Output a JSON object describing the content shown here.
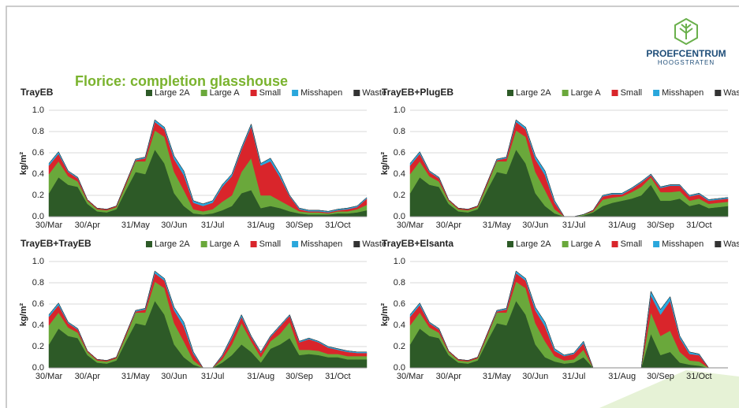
{
  "slide": {
    "title": "Florice: completion glasshouse",
    "logo_name": "PROEFCENTRUM",
    "logo_place": "HOOGSTRATEN"
  },
  "chart_data": [
    {
      "type": "stacked_area",
      "title": "TrayEB",
      "ylabel": "kg/m²",
      "categories": [
        "30/Mar",
        null,
        null,
        null,
        "30/Apr",
        null,
        null,
        null,
        null,
        "31/May",
        null,
        null,
        null,
        "30/Jun",
        null,
        null,
        null,
        "31/Jul",
        null,
        null,
        null,
        null,
        "31/Aug",
        null,
        null,
        null,
        "30/Sep",
        null,
        null,
        null,
        "31/Oct",
        null,
        null,
        null
      ],
      "ylim": [
        0,
        1
      ],
      "yticks": [
        {
          "value": 0,
          "label": "0.0"
        },
        0.2,
        0.4,
        0.6,
        0.8,
        {
          "value": 1,
          "label": "1.0"
        }
      ],
      "grid": true,
      "series": [
        {
          "name": "Large 2A",
          "color": "#2d5a27",
          "values": [
            0.22,
            0.37,
            0.3,
            0.28,
            0.12,
            0.05,
            0.04,
            0.07,
            0.25,
            0.42,
            0.4,
            0.63,
            0.5,
            0.22,
            0.1,
            0.03,
            0.02,
            0.03,
            0.06,
            0.1,
            0.22,
            0.25,
            0.08,
            0.1,
            0.08,
            0.05,
            0.03,
            0.02,
            0.02,
            0.02,
            0.03,
            0.03,
            0.04,
            0.06
          ]
        },
        {
          "name": "Large A",
          "color": "#6aa83b",
          "values": [
            0.18,
            0.15,
            0.08,
            0.05,
            0.03,
            0.02,
            0.02,
            0.02,
            0.05,
            0.1,
            0.12,
            0.18,
            0.25,
            0.2,
            0.15,
            0.04,
            0.03,
            0.04,
            0.08,
            0.1,
            0.2,
            0.3,
            0.12,
            0.1,
            0.07,
            0.05,
            0.02,
            0.02,
            0.02,
            0.01,
            0.02,
            0.02,
            0.03,
            0.05
          ]
        },
        {
          "name": "Small",
          "color": "#d9252b",
          "values": [
            0.08,
            0.07,
            0.04,
            0.03,
            0.01,
            0.01,
            0.01,
            0.01,
            0.02,
            0.01,
            0.03,
            0.08,
            0.07,
            0.12,
            0.14,
            0.06,
            0.05,
            0.06,
            0.14,
            0.18,
            0.21,
            0.3,
            0.28,
            0.32,
            0.22,
            0.09,
            0.02,
            0.01,
            0.01,
            0.01,
            0.01,
            0.02,
            0.02,
            0.06
          ]
        },
        {
          "name": "Misshapen",
          "color": "#2aa7dc",
          "values": [
            0.02,
            0.02,
            0.01,
            0.01,
            0,
            0,
            0,
            0,
            0,
            0.01,
            0.01,
            0.02,
            0.02,
            0.03,
            0.04,
            0.02,
            0.02,
            0.02,
            0.02,
            0.02,
            0.02,
            0.02,
            0.02,
            0.03,
            0.03,
            0.01,
            0.01,
            0.01,
            0.01,
            0.01,
            0.01,
            0.01,
            0.01,
            0.01
          ]
        },
        {
          "name": "Waste",
          "color": "#333333",
          "values": [
            0,
            0,
            0,
            0,
            0,
            0,
            0,
            0,
            0,
            0,
            0,
            0,
            0,
            0,
            0,
            0,
            0,
            0,
            0,
            0,
            0,
            0,
            0,
            0,
            0,
            0,
            0,
            0,
            0,
            0,
            0,
            0,
            0,
            0
          ]
        }
      ]
    },
    {
      "type": "stacked_area",
      "title": "TrayEB+PlugEB",
      "ylabel": "kg/m²",
      "categories": [
        "30/Mar",
        null,
        null,
        null,
        "30/Apr",
        null,
        null,
        null,
        null,
        "31/May",
        null,
        null,
        null,
        "30/Jun",
        null,
        null,
        null,
        "31/Jul",
        null,
        null,
        null,
        null,
        "31/Aug",
        null,
        null,
        null,
        "30/Sep",
        null,
        null,
        null,
        "31/Oct",
        null,
        null,
        null
      ],
      "ylim": [
        0,
        1
      ],
      "yticks": [
        {
          "value": 0,
          "label": "0.0"
        },
        0.2,
        0.4,
        0.6,
        0.8,
        {
          "value": 1,
          "label": "1.0"
        }
      ],
      "grid": true,
      "series": [
        {
          "name": "Large 2A",
          "color": "#2d5a27",
          "values": [
            0.22,
            0.37,
            0.3,
            0.28,
            0.12,
            0.05,
            0.04,
            0.07,
            0.25,
            0.42,
            0.4,
            0.63,
            0.5,
            0.22,
            0.1,
            0.03,
            0,
            0,
            0.01,
            0.04,
            0.1,
            0.13,
            0.15,
            0.17,
            0.2,
            0.3,
            0.15,
            0.15,
            0.17,
            0.1,
            0.12,
            0.08,
            0.09,
            0.1
          ]
        },
        {
          "name": "Large A",
          "color": "#6aa83b",
          "values": [
            0.18,
            0.15,
            0.08,
            0.05,
            0.03,
            0.02,
            0.02,
            0.02,
            0.05,
            0.1,
            0.12,
            0.18,
            0.25,
            0.2,
            0.15,
            0.04,
            0,
            0,
            0.01,
            0.01,
            0.06,
            0.05,
            0.04,
            0.06,
            0.08,
            0.07,
            0.08,
            0.08,
            0.07,
            0.05,
            0.05,
            0.04,
            0.04,
            0.04
          ]
        },
        {
          "name": "Small",
          "color": "#d9252b",
          "values": [
            0.08,
            0.07,
            0.04,
            0.03,
            0.01,
            0.01,
            0.01,
            0.01,
            0.02,
            0.01,
            0.03,
            0.08,
            0.07,
            0.12,
            0.14,
            0.06,
            0,
            0,
            0,
            0.01,
            0.03,
            0.03,
            0.02,
            0.03,
            0.04,
            0.02,
            0.04,
            0.06,
            0.05,
            0.04,
            0.04,
            0.03,
            0.03,
            0.03
          ]
        },
        {
          "name": "Misshapen",
          "color": "#2aa7dc",
          "values": [
            0.02,
            0.02,
            0.01,
            0.01,
            0,
            0,
            0,
            0,
            0,
            0.01,
            0.01,
            0.02,
            0.02,
            0.03,
            0.04,
            0.02,
            0,
            0,
            0,
            0,
            0.01,
            0.01,
            0.01,
            0.01,
            0.01,
            0.01,
            0.01,
            0.01,
            0.01,
            0.01,
            0.01,
            0.01,
            0.01,
            0.01
          ]
        },
        {
          "name": "Waste",
          "color": "#333333",
          "values": [
            0,
            0,
            0,
            0,
            0,
            0,
            0,
            0,
            0,
            0,
            0,
            0,
            0,
            0,
            0,
            0,
            0,
            0,
            0,
            0,
            0,
            0,
            0,
            0,
            0,
            0,
            0,
            0,
            0,
            0,
            0,
            0,
            0,
            0
          ]
        }
      ]
    },
    {
      "type": "stacked_area",
      "title": "TrayEB+TrayEB",
      "ylabel": "kg/m²",
      "categories": [
        "30/Mar",
        null,
        null,
        null,
        "30/Apr",
        null,
        null,
        null,
        null,
        "31/May",
        null,
        null,
        null,
        "30/Jun",
        null,
        null,
        null,
        "31/Jul",
        null,
        null,
        null,
        null,
        "31/Aug",
        null,
        null,
        null,
        "30/Sep",
        null,
        null,
        null,
        "31/Oct",
        null,
        null,
        null
      ],
      "ylim": [
        0,
        1
      ],
      "yticks": [
        {
          "value": 0,
          "label": "0.0"
        },
        0.2,
        0.4,
        0.6,
        0.8,
        {
          "value": 1,
          "label": "1.0"
        }
      ],
      "grid": true,
      "series": [
        {
          "name": "Large 2A",
          "color": "#2d5a27",
          "values": [
            0.22,
            0.37,
            0.3,
            0.28,
            0.12,
            0.05,
            0.04,
            0.07,
            0.25,
            0.42,
            0.4,
            0.63,
            0.5,
            0.22,
            0.1,
            0.03,
            0,
            0,
            0.05,
            0.12,
            0.22,
            0.15,
            0.05,
            0.18,
            0.22,
            0.28,
            0.12,
            0.13,
            0.12,
            0.1,
            0.1,
            0.08,
            0.08,
            0.08
          ]
        },
        {
          "name": "Large A",
          "color": "#6aa83b",
          "values": [
            0.18,
            0.15,
            0.08,
            0.05,
            0.03,
            0.02,
            0.02,
            0.02,
            0.05,
            0.1,
            0.12,
            0.18,
            0.25,
            0.2,
            0.15,
            0.04,
            0,
            0,
            0.03,
            0.1,
            0.2,
            0.1,
            0.05,
            0.07,
            0.1,
            0.15,
            0.05,
            0.04,
            0.04,
            0.03,
            0.03,
            0.03,
            0.03,
            0.03
          ]
        },
        {
          "name": "Small",
          "color": "#d9252b",
          "values": [
            0.08,
            0.07,
            0.04,
            0.03,
            0.01,
            0.01,
            0.01,
            0.01,
            0.02,
            0.01,
            0.03,
            0.08,
            0.07,
            0.12,
            0.14,
            0.06,
            0,
            0,
            0.03,
            0.06,
            0.06,
            0.04,
            0.04,
            0.04,
            0.07,
            0.06,
            0.07,
            0.1,
            0.08,
            0.06,
            0.04,
            0.04,
            0.03,
            0.03
          ]
        },
        {
          "name": "Misshapen",
          "color": "#2aa7dc",
          "values": [
            0.02,
            0.02,
            0.01,
            0.01,
            0,
            0,
            0,
            0,
            0,
            0.01,
            0.01,
            0.02,
            0.02,
            0.03,
            0.04,
            0.02,
            0,
            0,
            0.01,
            0.02,
            0.02,
            0.01,
            0.01,
            0.01,
            0.01,
            0.01,
            0.01,
            0.01,
            0.01,
            0.01,
            0.01,
            0.01,
            0.01,
            0.01
          ]
        },
        {
          "name": "Waste",
          "color": "#333333",
          "values": [
            0,
            0,
            0,
            0,
            0,
            0,
            0,
            0,
            0,
            0,
            0,
            0,
            0,
            0,
            0,
            0,
            0,
            0,
            0,
            0,
            0,
            0,
            0,
            0,
            0,
            0,
            0,
            0,
            0,
            0,
            0,
            0,
            0,
            0
          ]
        }
      ]
    },
    {
      "type": "stacked_area",
      "title": "TrayEB+Elsanta",
      "ylabel": "kg/m²",
      "categories": [
        "30/Mar",
        null,
        null,
        null,
        "30/Apr",
        null,
        null,
        null,
        null,
        "31/May",
        null,
        null,
        null,
        "30/Jun",
        null,
        null,
        null,
        "31/Jul",
        null,
        null,
        null,
        null,
        "31/Aug",
        null,
        null,
        null,
        "30/Sep",
        null,
        null,
        null,
        "31/Oct",
        null,
        null,
        null
      ],
      "ylim": [
        0,
        1
      ],
      "yticks": [
        {
          "value": 0,
          "label": "0.0"
        },
        0.2,
        0.4,
        0.6,
        0.8,
        {
          "value": 1,
          "label": "1.0"
        }
      ],
      "grid": true,
      "series": [
        {
          "name": "Large 2A",
          "color": "#2d5a27",
          "values": [
            0.22,
            0.37,
            0.3,
            0.28,
            0.12,
            0.05,
            0.04,
            0.07,
            0.25,
            0.42,
            0.4,
            0.63,
            0.5,
            0.22,
            0.1,
            0.06,
            0.04,
            0.05,
            0.1,
            0,
            0,
            0,
            0,
            0,
            0,
            0.32,
            0.12,
            0.15,
            0.05,
            0.03,
            0.02,
            0,
            null,
            null
          ]
        },
        {
          "name": "Large A",
          "color": "#6aa83b",
          "values": [
            0.18,
            0.15,
            0.08,
            0.05,
            0.03,
            0.02,
            0.02,
            0.02,
            0.05,
            0.1,
            0.12,
            0.18,
            0.25,
            0.2,
            0.15,
            0.05,
            0.03,
            0.03,
            0.07,
            0,
            0,
            0,
            0,
            0,
            0,
            0.2,
            0.18,
            0.2,
            0.1,
            0.04,
            0.04,
            0,
            null,
            null
          ]
        },
        {
          "name": "Small",
          "color": "#d9252b",
          "values": [
            0.08,
            0.07,
            0.04,
            0.03,
            0.01,
            0.01,
            0.01,
            0.01,
            0.02,
            0.01,
            0.03,
            0.08,
            0.07,
            0.12,
            0.14,
            0.05,
            0.04,
            0.05,
            0.06,
            0,
            0,
            0,
            0,
            0,
            0,
            0.16,
            0.2,
            0.28,
            0.13,
            0.06,
            0.06,
            0,
            null,
            null
          ]
        },
        {
          "name": "Misshapen",
          "color": "#2aa7dc",
          "values": [
            0.02,
            0.02,
            0.01,
            0.01,
            0,
            0,
            0,
            0,
            0,
            0.01,
            0.01,
            0.02,
            0.02,
            0.03,
            0.04,
            0.02,
            0.01,
            0.01,
            0.02,
            0,
            0,
            0,
            0,
            0,
            0,
            0.04,
            0.05,
            0.04,
            0.02,
            0.02,
            0.01,
            0,
            null,
            null
          ]
        },
        {
          "name": "Waste",
          "color": "#333333",
          "values": [
            0,
            0,
            0,
            0,
            0,
            0,
            0,
            0,
            0,
            0,
            0,
            0,
            0,
            0,
            0,
            0,
            0,
            0,
            0,
            0,
            0,
            0,
            0,
            0,
            0,
            0,
            0,
            0,
            0,
            0,
            0,
            0,
            null,
            null
          ]
        }
      ]
    }
  ]
}
